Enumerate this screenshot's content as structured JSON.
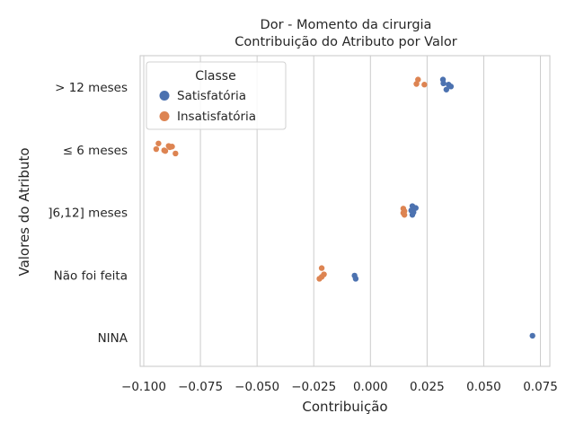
{
  "chart_data": {
    "type": "scatter",
    "title": "Dor - Momento da cirurgia",
    "subtitle": "Contribuição do Atributo por Valor",
    "xlabel": "Contribuição",
    "ylabel": "Valores do Atributo",
    "xlim": [
      -0.1,
      0.08
    ],
    "x_ticks": [
      -0.1,
      -0.075,
      -0.05,
      -0.025,
      0.0,
      0.025,
      0.05,
      0.075
    ],
    "x_tick_labels": [
      "−0.100",
      "−0.075",
      "−0.050",
      "−0.025",
      "0.000",
      "0.025",
      "0.050",
      "0.075"
    ],
    "categories": [
      "> 12 meses",
      "≤ 6 meses",
      "]6,12] meses",
      "Não foi feita",
      "NINA"
    ],
    "grid": "vertical",
    "legend": {
      "title": "Classe",
      "placement": "top-left"
    },
    "series": [
      {
        "name": "Satisfatória",
        "color": "#4c72b0",
        "points": [
          {
            "category": "> 12 meses",
            "x": 0.032,
            "jitter": -0.12
          },
          {
            "category": "> 12 meses",
            "x": 0.0322,
            "jitter": -0.06
          },
          {
            "category": "> 12 meses",
            "x": 0.0345,
            "jitter": -0.04
          },
          {
            "category": "> 12 meses",
            "x": 0.0355,
            "jitter": -0.01
          },
          {
            "category": "> 12 meses",
            "x": 0.0335,
            "jitter": 0.04
          },
          {
            "category": "]6,12] meses",
            "x": 0.0185,
            "jitter": -0.1
          },
          {
            "category": "]6,12] meses",
            "x": 0.02,
            "jitter": -0.07
          },
          {
            "category": "]6,12] meses",
            "x": 0.018,
            "jitter": -0.03
          },
          {
            "category": "]6,12] meses",
            "x": 0.019,
            "jitter": 0.0
          },
          {
            "category": "]6,12] meses",
            "x": 0.0185,
            "jitter": 0.04
          },
          {
            "category": "Não foi feita",
            "x": -0.007,
            "jitter": 0.01
          },
          {
            "category": "Não foi feita",
            "x": -0.0065,
            "jitter": 0.06
          },
          {
            "category": "NINA",
            "x": 0.0715,
            "jitter": -0.03
          }
        ]
      },
      {
        "name": "Insatisfatória",
        "color": "#dd8452",
        "points": [
          {
            "category": "> 12 meses",
            "x": 0.021,
            "jitter": -0.12
          },
          {
            "category": "> 12 meses",
            "x": 0.0203,
            "jitter": -0.05
          },
          {
            "category": "> 12 meses",
            "x": 0.0238,
            "jitter": -0.04
          },
          {
            "category": "≤ 6 meses",
            "x": -0.0935,
            "jitter": -0.1
          },
          {
            "category": "≤ 6 meses",
            "x": -0.089,
            "jitter": -0.06
          },
          {
            "category": "≤ 6 meses",
            "x": -0.0875,
            "jitter": -0.05
          },
          {
            "category": "≤ 6 meses",
            "x": -0.0945,
            "jitter": -0.01
          },
          {
            "category": "≤ 6 meses",
            "x": -0.091,
            "jitter": 0.01
          },
          {
            "category": "≤ 6 meses",
            "x": -0.0905,
            "jitter": 0.02
          },
          {
            "category": "≤ 6 meses",
            "x": -0.0885,
            "jitter": -0.04
          },
          {
            "category": "≤ 6 meses",
            "x": -0.086,
            "jitter": 0.06
          },
          {
            "category": "]6,12] meses",
            "x": 0.0145,
            "jitter": -0.06
          },
          {
            "category": "]6,12] meses",
            "x": 0.015,
            "jitter": -0.02
          },
          {
            "category": "]6,12] meses",
            "x": 0.0145,
            "jitter": 0.01
          },
          {
            "category": "]6,12] meses",
            "x": 0.015,
            "jitter": 0.04
          },
          {
            "category": "Não foi feita",
            "x": -0.0215,
            "jitter": -0.11
          },
          {
            "category": "Não foi feita",
            "x": -0.0205,
            "jitter": -0.01
          },
          {
            "category": "Não foi feita",
            "x": -0.0215,
            "jitter": 0.03
          },
          {
            "category": "Não foi feita",
            "x": -0.0225,
            "jitter": 0.06
          }
        ]
      }
    ]
  }
}
